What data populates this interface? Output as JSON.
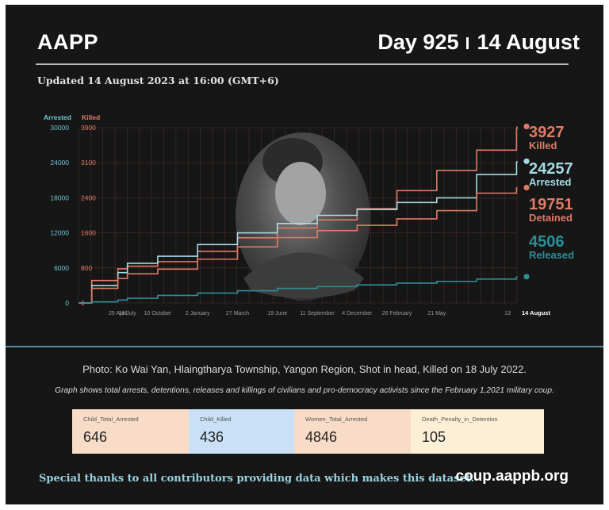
{
  "header": {
    "brand": "AAPP",
    "day_label": "Day 925",
    "date_label": "14 August"
  },
  "updated": "Updated 14 August 2023 at 16:00 (GMT+6)",
  "chart_data": {
    "type": "line",
    "x": [
      "2021-02-01",
      "2021-03-01",
      "2021-04-25",
      "2021-05-15",
      "2021-07-18",
      "2021-10-10",
      "2022-01-02",
      "2022-03-27",
      "2022-06-19",
      "2022-09-11",
      "2022-12-04",
      "2023-02-26",
      "2023-05-21",
      "2023-08-13",
      "2023-08-14"
    ],
    "x_tick_labels": [
      "25 April",
      "18 July",
      "10 October",
      "2 January",
      "27 March",
      "19 June",
      "11 September",
      "4 December",
      "26 February",
      "21 May",
      "13",
      "14 August"
    ],
    "left_axis": {
      "label": "Arrested",
      "ticks": [
        0,
        6000,
        12000,
        18000,
        24000,
        30000
      ],
      "range": [
        0,
        30000
      ],
      "color": "#6cc7d6"
    },
    "right_axis": {
      "label": "Killed",
      "ticks": [
        0,
        800,
        1600,
        2400,
        3100,
        3900
      ],
      "range": [
        0,
        3900
      ],
      "color": "#e07a67"
    },
    "grid": true,
    "series": [
      {
        "name": "Killed",
        "axis": "right",
        "color": "#e07a67",
        "final": "3927",
        "values": [
          0,
          500,
          760,
          820,
          920,
          1150,
          1450,
          1670,
          1850,
          2100,
          2500,
          2950,
          3400,
          3880,
          3927
        ]
      },
      {
        "name": "Arrested",
        "axis": "left",
        "color": "#a6dbe3",
        "final": "24257",
        "values": [
          0,
          3000,
          5200,
          6800,
          8000,
          10000,
          12000,
          13600,
          15000,
          16000,
          17200,
          18000,
          22000,
          24100,
          24257
        ]
      },
      {
        "name": "Detained",
        "axis": "left",
        "color": "#e07a67",
        "final": "19751",
        "values": [
          0,
          2500,
          4200,
          5000,
          5800,
          7500,
          9600,
          11200,
          12400,
          13300,
          14400,
          15800,
          18800,
          19700,
          19751
        ]
      },
      {
        "name": "Released",
        "axis": "left",
        "color": "#2d8f96",
        "final": "4506",
        "values": [
          0,
          200,
          500,
          800,
          1300,
          1700,
          2100,
          2500,
          2800,
          3100,
          3400,
          3700,
          4100,
          4480,
          4506
        ]
      }
    ]
  },
  "photo_caption": "Photo: Ko Wai Yan, Hlaingtharya Township, Yangon Region, Shot in head, Killed on 18 July 2022.",
  "graph_note": "Graph shows total arrests, detentions, releases and killings of civilians and pro-democracy activists since the February 1,2021 military coup.",
  "stats": [
    {
      "label": "Child_Total_Arrested",
      "value": "646"
    },
    {
      "label": "Child_Killed",
      "value": "436"
    },
    {
      "label": "Women_Total_Arrested",
      "value": "4846"
    },
    {
      "label": "Death_Penalty_in_Detention",
      "value": "105"
    }
  ],
  "footer": {
    "thanks": "Special thanks to all contributors providing data which makes this dataset.",
    "url": "coup.aappb.org"
  }
}
